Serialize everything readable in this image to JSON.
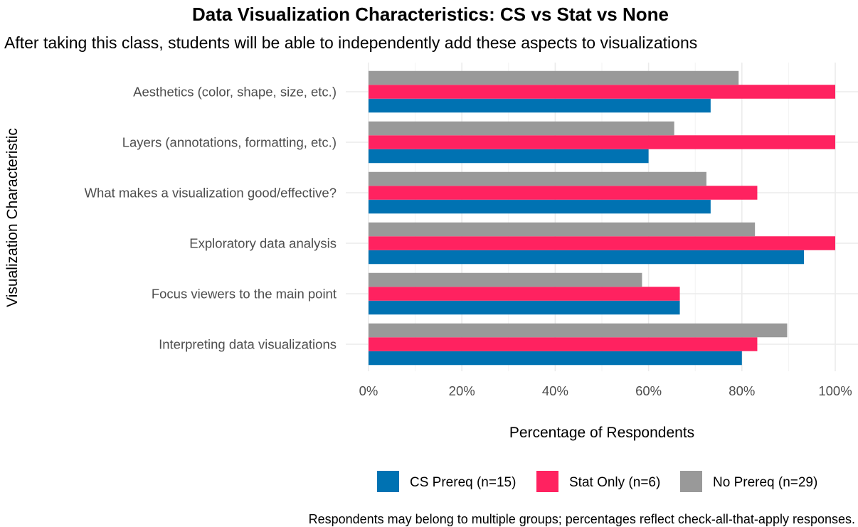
{
  "chart_data": {
    "type": "bar",
    "orientation": "horizontal",
    "title": "Data Visualization Characteristics: CS vs Stat vs None",
    "subtitle": "After taking this class, students will be able to independently add these aspects to visualizations",
    "xlabel": "Percentage of Respondents",
    "ylabel": "Visualization Characteristic",
    "caption": "Respondents may belong to multiple groups; percentages reflect check-all-that-apply responses.",
    "xlim": [
      0,
      100
    ],
    "x_ticks": [
      "0%",
      "20%",
      "40%",
      "60%",
      "80%",
      "100%"
    ],
    "grid": true,
    "legend_position": "bottom",
    "categories": [
      "Aesthetics (color, shape, size, etc.)",
      "Layers (annotations, formatting, etc.)",
      "What makes a visualization good/effective?",
      "Exploratory data analysis",
      "Focus viewers to the main point",
      "Interpreting data visualizations"
    ],
    "series": [
      {
        "name": "CS Prereq (n=15)",
        "color": "#0072B2",
        "values": [
          73.3,
          60.0,
          73.3,
          93.3,
          66.7,
          80.0
        ]
      },
      {
        "name": "Stat Only (n=6)",
        "color": "#FF2260",
        "values": [
          100.0,
          100.0,
          83.3,
          100.0,
          66.7,
          83.3
        ]
      },
      {
        "name": "No Prereq (n=29)",
        "color": "#999999",
        "values": [
          79.3,
          65.5,
          72.4,
          82.8,
          58.6,
          89.7
        ]
      }
    ]
  }
}
